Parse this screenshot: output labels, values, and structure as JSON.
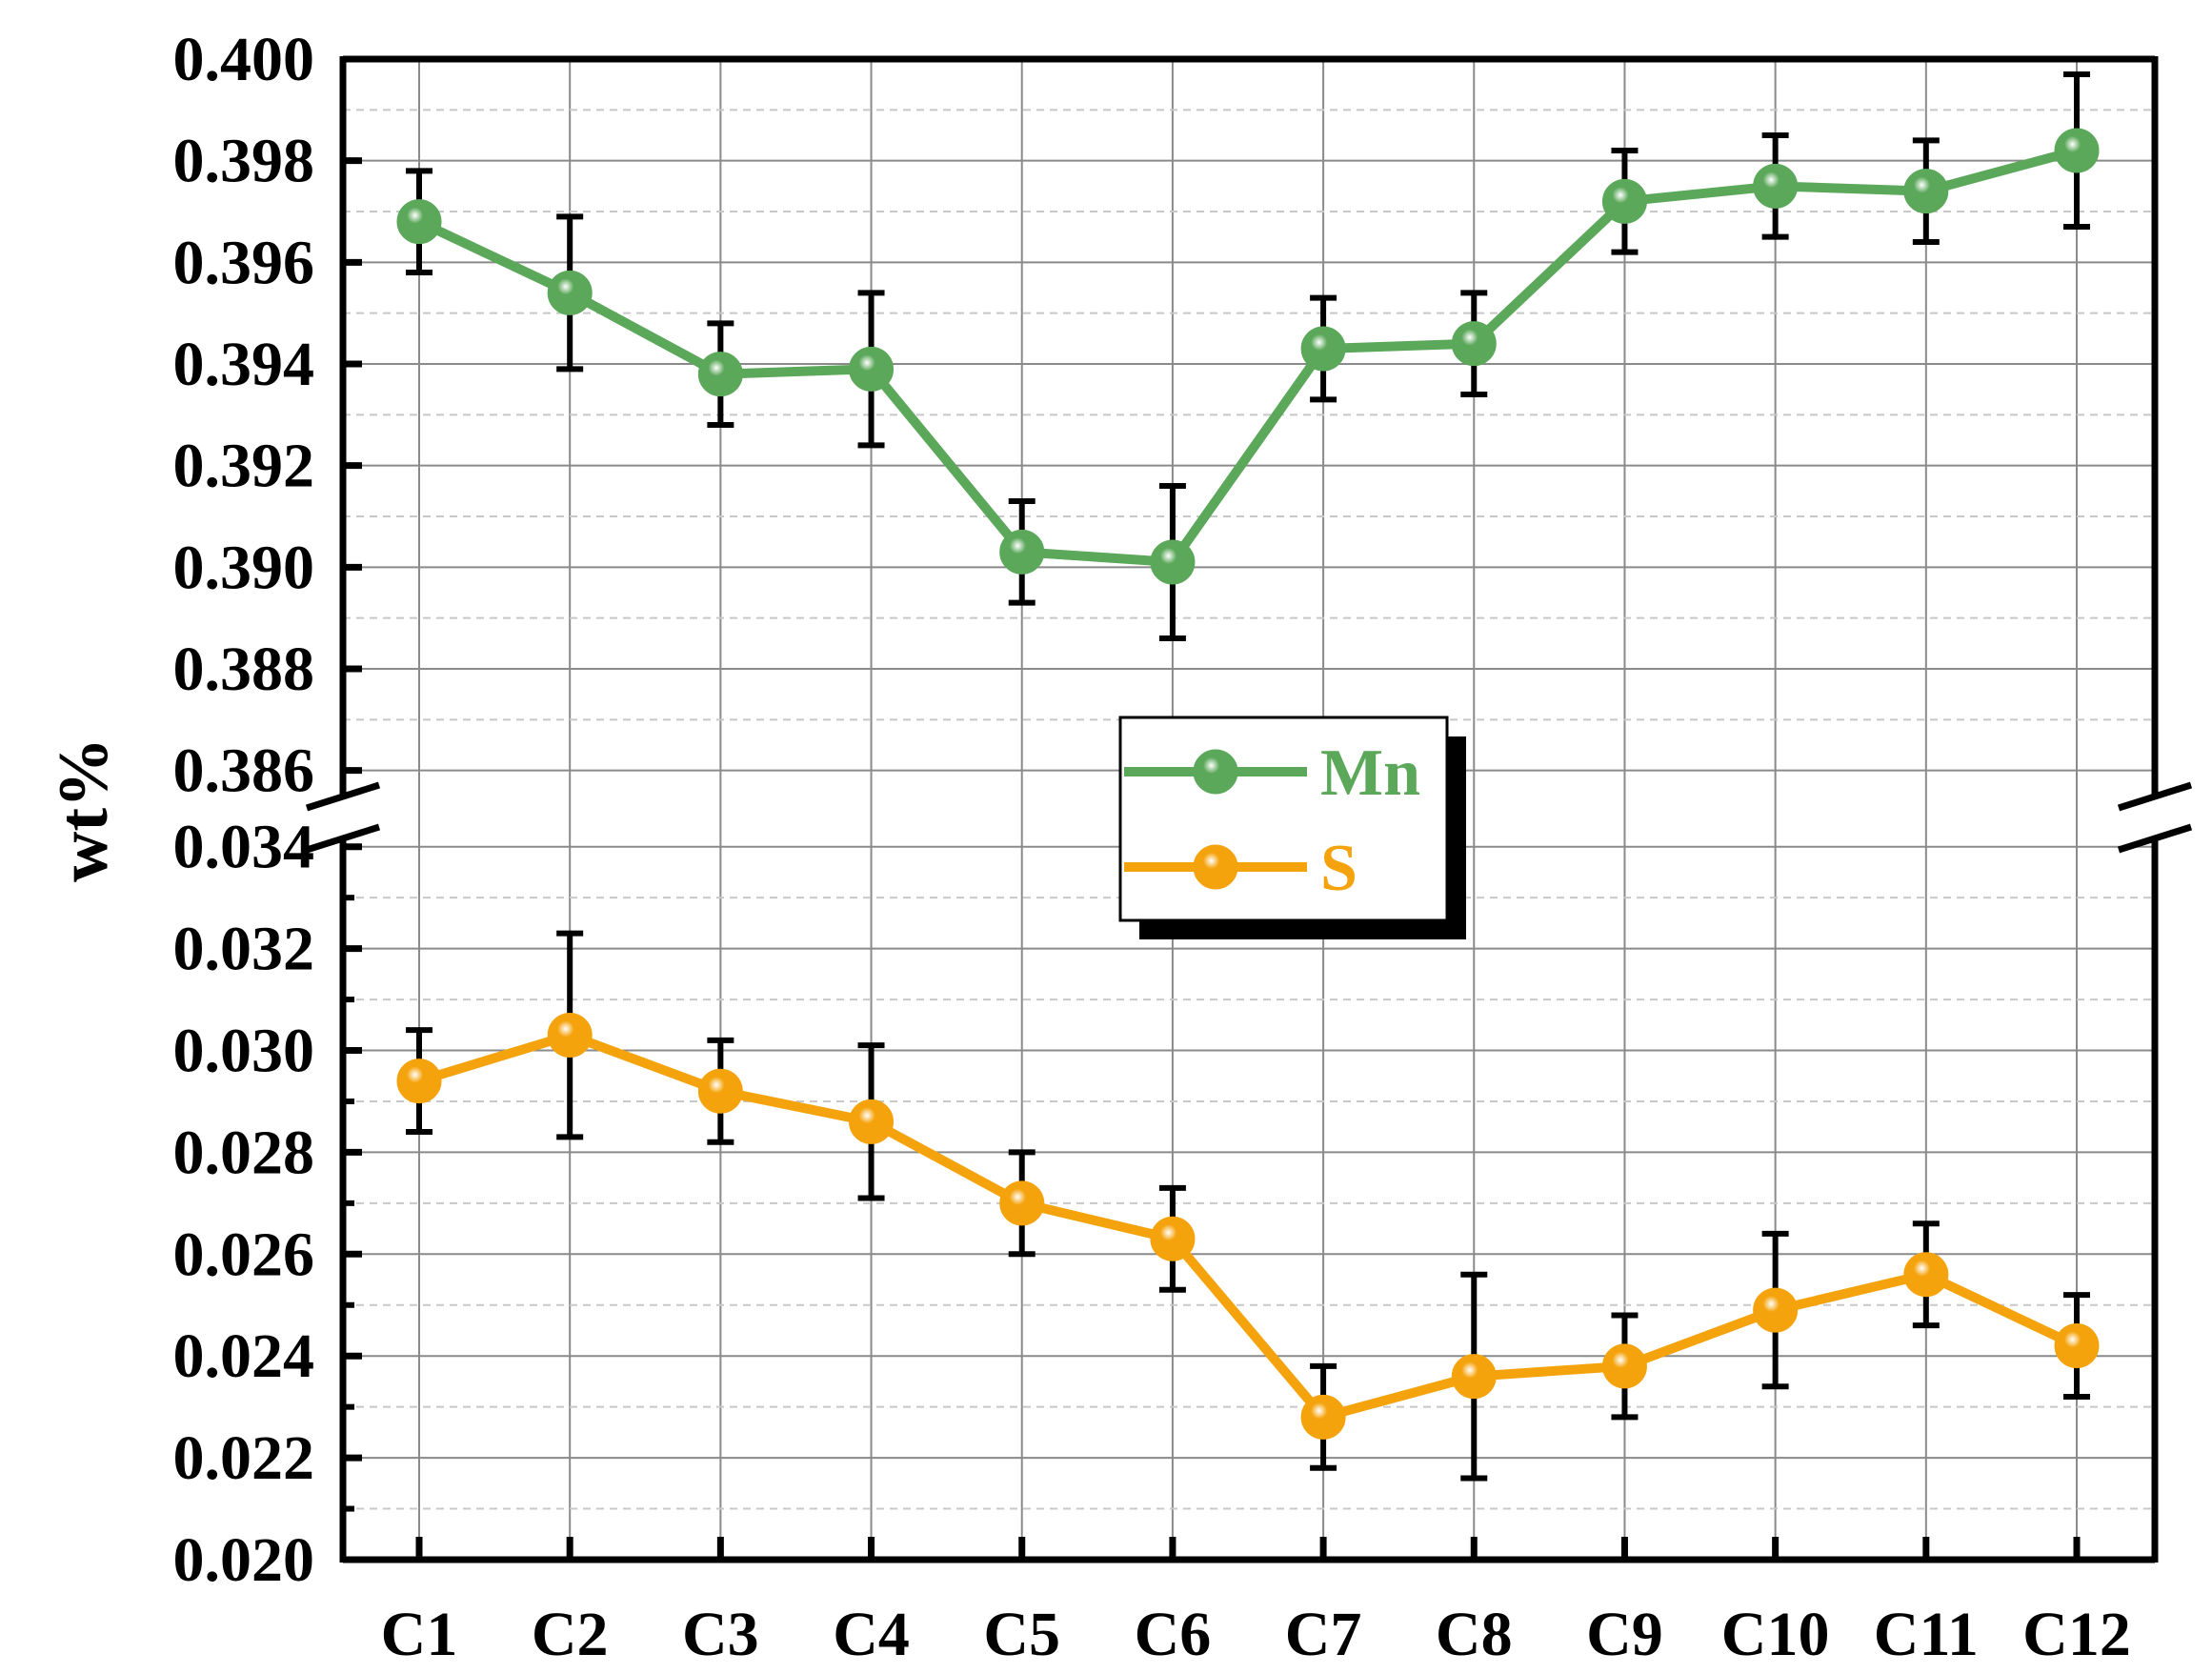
{
  "chart_data": {
    "type": "line",
    "ylabel": "wt%",
    "xlabel": "",
    "categories": [
      "C1",
      "C2",
      "C3",
      "C4",
      "C5",
      "C6",
      "C7",
      "C8",
      "C9",
      "C10",
      "C11",
      "C12"
    ],
    "y_axis_break": true,
    "upper_ylim": [
      0.385,
      0.4
    ],
    "lower_ylim": [
      0.02,
      0.0345
    ],
    "upper_ticks": [
      "0.400",
      "0.398",
      "0.396",
      "0.394",
      "0.392",
      "0.390",
      "0.388",
      "0.386"
    ],
    "lower_ticks": [
      "0.034",
      "0.032",
      "0.030",
      "0.028",
      "0.026",
      "0.024",
      "0.022",
      "0.020"
    ],
    "grid": true,
    "legend_position": "center",
    "series": [
      {
        "name": "Mn",
        "color": "#5ba85a",
        "panel": "upper",
        "values": [
          0.3968,
          0.3954,
          0.3938,
          0.3939,
          0.3903,
          0.3901,
          0.3943,
          0.3944,
          0.3972,
          0.3975,
          0.3974,
          0.3982
        ],
        "errors": [
          0.001,
          0.0015,
          0.001,
          0.0015,
          0.001,
          0.0015,
          0.001,
          0.001,
          0.001,
          0.001,
          0.001,
          0.0015
        ]
      },
      {
        "name": "S",
        "color": "#f5a30c",
        "panel": "lower",
        "values": [
          0.0294,
          0.0303,
          0.0292,
          0.0286,
          0.027,
          0.0263,
          0.0228,
          0.0236,
          0.0238,
          0.0249,
          0.0256,
          0.0242
        ],
        "errors": [
          0.001,
          0.002,
          0.001,
          0.0015,
          0.001,
          0.001,
          0.001,
          0.002,
          0.001,
          0.0015,
          0.001,
          0.001
        ]
      }
    ]
  }
}
